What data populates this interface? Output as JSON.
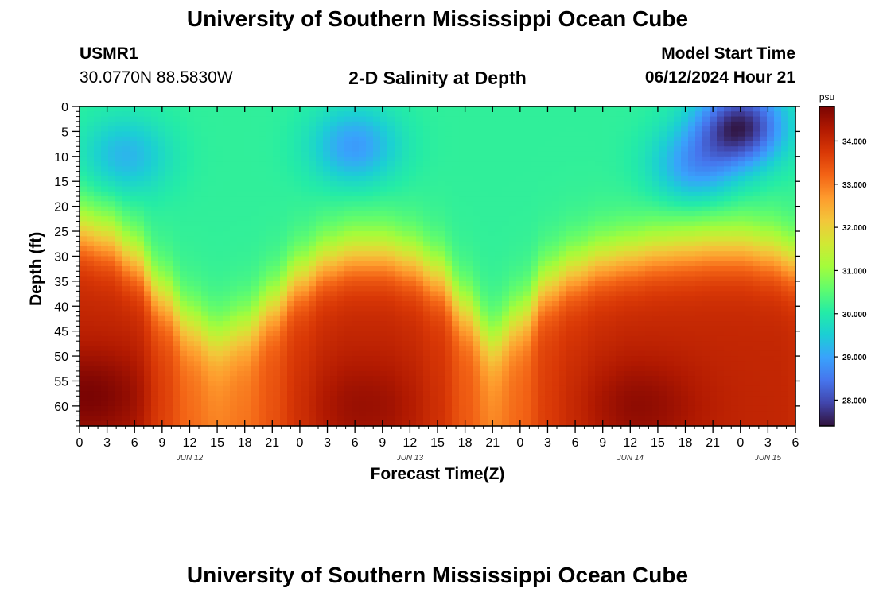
{
  "page_title": "University of Southern Mississippi Ocean Cube",
  "footer_title": "University of Southern Mississippi Ocean Cube",
  "station": {
    "id": "USMR1",
    "coords": "30.0770N  88.5830W"
  },
  "chart_subtitle": "2-D Salinity at Depth",
  "model_start": {
    "label": "Model Start Time",
    "value": "06/12/2024 Hour 21"
  },
  "chart_data": {
    "type": "heatmap",
    "ylabel": "Depth (ft)",
    "xlabel": "Forecast Time(Z)",
    "xlim": [
      0,
      78
    ],
    "ylim": [
      0,
      64
    ],
    "y_inverted": true,
    "x_tick_labels": [
      "0",
      "3",
      "6",
      "9",
      "12",
      "15",
      "18",
      "21",
      "0",
      "3",
      "6",
      "9",
      "12",
      "15",
      "18",
      "21",
      "0",
      "3",
      "6",
      "9",
      "12",
      "15",
      "18",
      "21",
      "0",
      "3",
      "6"
    ],
    "y_ticks": [
      0,
      5,
      10,
      15,
      20,
      25,
      30,
      35,
      40,
      45,
      50,
      55,
      60
    ],
    "day_labels": [
      {
        "label": "JUN 12",
        "hour": 12
      },
      {
        "label": "JUN 13",
        "hour": 36
      },
      {
        "label": "JUN 14",
        "hour": 60
      },
      {
        "label": "JUN 15",
        "hour": 75
      }
    ],
    "colorbar": {
      "unit": "psu",
      "range": [
        27.4,
        34.8
      ],
      "tick_labels": [
        "28.000",
        "29.000",
        "30.000",
        "31.000",
        "32.000",
        "33.000",
        "34.000"
      ],
      "tick_values": [
        28,
        29,
        30,
        31,
        32,
        33,
        34
      ],
      "colors": [
        "#30123b",
        "#4145ab",
        "#4675ed",
        "#39a2fc",
        "#1bcfd4",
        "#24eca6",
        "#61fc6c",
        "#a4fc3b",
        "#d1e834",
        "#f3c63a",
        "#fe9b2d",
        "#f36315",
        "#d93806",
        "#b11901",
        "#7a0403"
      ]
    },
    "halocline_depth_ft": {
      "hours": [
        0,
        3,
        6,
        9,
        12,
        15,
        18,
        21,
        24,
        27,
        30,
        33,
        36,
        39,
        42,
        45,
        48,
        51,
        54,
        57,
        60,
        63,
        66,
        69,
        72,
        75,
        78
      ],
      "values": [
        25,
        26.5,
        30.5,
        38,
        44,
        47,
        45,
        40,
        34.5,
        31,
        29.5,
        29.5,
        31,
        34,
        41,
        47.5,
        43,
        36,
        33,
        31,
        30,
        29,
        28.5,
        28,
        28,
        29,
        31
      ]
    },
    "surface_minima": [
      {
        "hour": 5,
        "depth": 10,
        "value": 29.2
      },
      {
        "hour": 30,
        "depth": 8,
        "value": 28.9
      },
      {
        "hour": 67,
        "depth": 12,
        "value": 28.9
      },
      {
        "hour": 72,
        "depth": 4,
        "value": 27.6
      }
    ],
    "bottom_maxima": [
      {
        "hour": 1,
        "depth": 58,
        "value": 34.8
      },
      {
        "hour": 31,
        "depth": 60,
        "value": 34.5
      },
      {
        "hour": 61,
        "depth": 60,
        "value": 34.6
      }
    ]
  }
}
